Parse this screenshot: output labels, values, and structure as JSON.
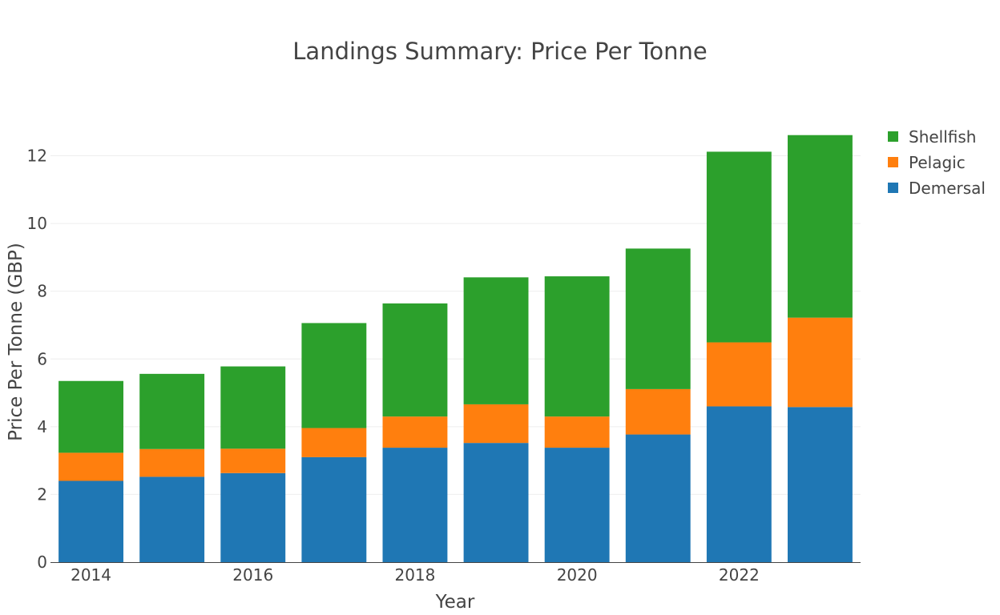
{
  "chart_data": {
    "type": "bar",
    "barmode": "stack",
    "title": "Landings Summary: Price Per Tonne",
    "xlabel": "Year",
    "ylabel": "Price Per Tonne (GBP)",
    "categories": [
      2014,
      2015,
      2016,
      2017,
      2018,
      2019,
      2020,
      2021,
      2022,
      2023
    ],
    "x_tick_labels": [
      "2014",
      "2016",
      "2018",
      "2020",
      "2022"
    ],
    "y_tick_labels": [
      "0",
      "2",
      "4",
      "6",
      "8",
      "10",
      "12"
    ],
    "ylim": [
      0,
      13.1
    ],
    "grid": true,
    "legend_position": "top-right",
    "series": [
      {
        "name": "Demersal",
        "color": "#1f77b4",
        "values": [
          2.4,
          2.52,
          2.63,
          3.1,
          3.38,
          3.52,
          3.38,
          3.77,
          4.6,
          4.58
        ]
      },
      {
        "name": "Pelagic",
        "color": "#ff7f0e",
        "values": [
          0.83,
          0.82,
          0.72,
          0.86,
          0.92,
          1.14,
          0.92,
          1.34,
          1.89,
          2.64
        ]
      },
      {
        "name": "Shellfish",
        "color": "#2ca02c",
        "values": [
          2.12,
          2.22,
          2.43,
          3.1,
          3.34,
          3.75,
          4.14,
          4.15,
          5.63,
          5.39
        ]
      }
    ],
    "legend_order": [
      "Shellfish",
      "Pelagic",
      "Demersal"
    ]
  }
}
